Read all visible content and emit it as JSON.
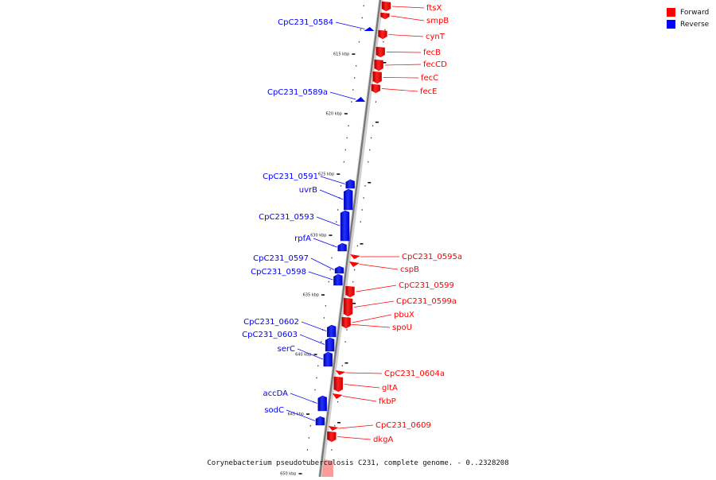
{
  "legend": {
    "forward_label": "Forward",
    "reverse_label": "Reverse",
    "forward_color": "#ff0000",
    "reverse_color": "#0000ff"
  },
  "caption": "Corynebacterium pseudotuberculosis C231, complete genome. - 0..2328208",
  "scale": {
    "unit": "kbp",
    "labeled_ticks": [
      615,
      620,
      625,
      630,
      635,
      640,
      645,
      650
    ]
  },
  "genes": [
    {
      "name": "ftsX",
      "strand": "forward"
    },
    {
      "name": "smpB",
      "strand": "forward"
    },
    {
      "name": "CpC231_0584",
      "strand": "reverse"
    },
    {
      "name": "cynT",
      "strand": "forward"
    },
    {
      "name": "fecB",
      "strand": "forward"
    },
    {
      "name": "fecCD",
      "strand": "forward"
    },
    {
      "name": "fecC",
      "strand": "forward"
    },
    {
      "name": "fecE",
      "strand": "forward"
    },
    {
      "name": "CpC231_0589a",
      "strand": "reverse"
    },
    {
      "name": "CpC231_0591",
      "strand": "reverse"
    },
    {
      "name": "uvrB",
      "strand": "reverse"
    },
    {
      "name": "CpC231_0593",
      "strand": "reverse"
    },
    {
      "name": "rpfA",
      "strand": "reverse"
    },
    {
      "name": "CpC231_0595a",
      "strand": "forward"
    },
    {
      "name": "CpC231_0597",
      "strand": "reverse"
    },
    {
      "name": "cspB",
      "strand": "forward"
    },
    {
      "name": "CpC231_0598",
      "strand": "reverse"
    },
    {
      "name": "CpC231_0599",
      "strand": "forward"
    },
    {
      "name": "CpC231_0599a",
      "strand": "forward"
    },
    {
      "name": "pbuX",
      "strand": "forward"
    },
    {
      "name": "spoU",
      "strand": "forward"
    },
    {
      "name": "CpC231_0602",
      "strand": "reverse"
    },
    {
      "name": "CpC231_0603",
      "strand": "reverse"
    },
    {
      "name": "serC",
      "strand": "reverse"
    },
    {
      "name": "CpC231_0604a",
      "strand": "forward"
    },
    {
      "name": "gltA",
      "strand": "forward"
    },
    {
      "name": "accDA",
      "strand": "reverse"
    },
    {
      "name": "fkbP",
      "strand": "forward"
    },
    {
      "name": "sodC",
      "strand": "reverse"
    },
    {
      "name": "CpC231_0609",
      "strand": "forward"
    },
    {
      "name": "dkgA",
      "strand": "forward"
    }
  ]
}
